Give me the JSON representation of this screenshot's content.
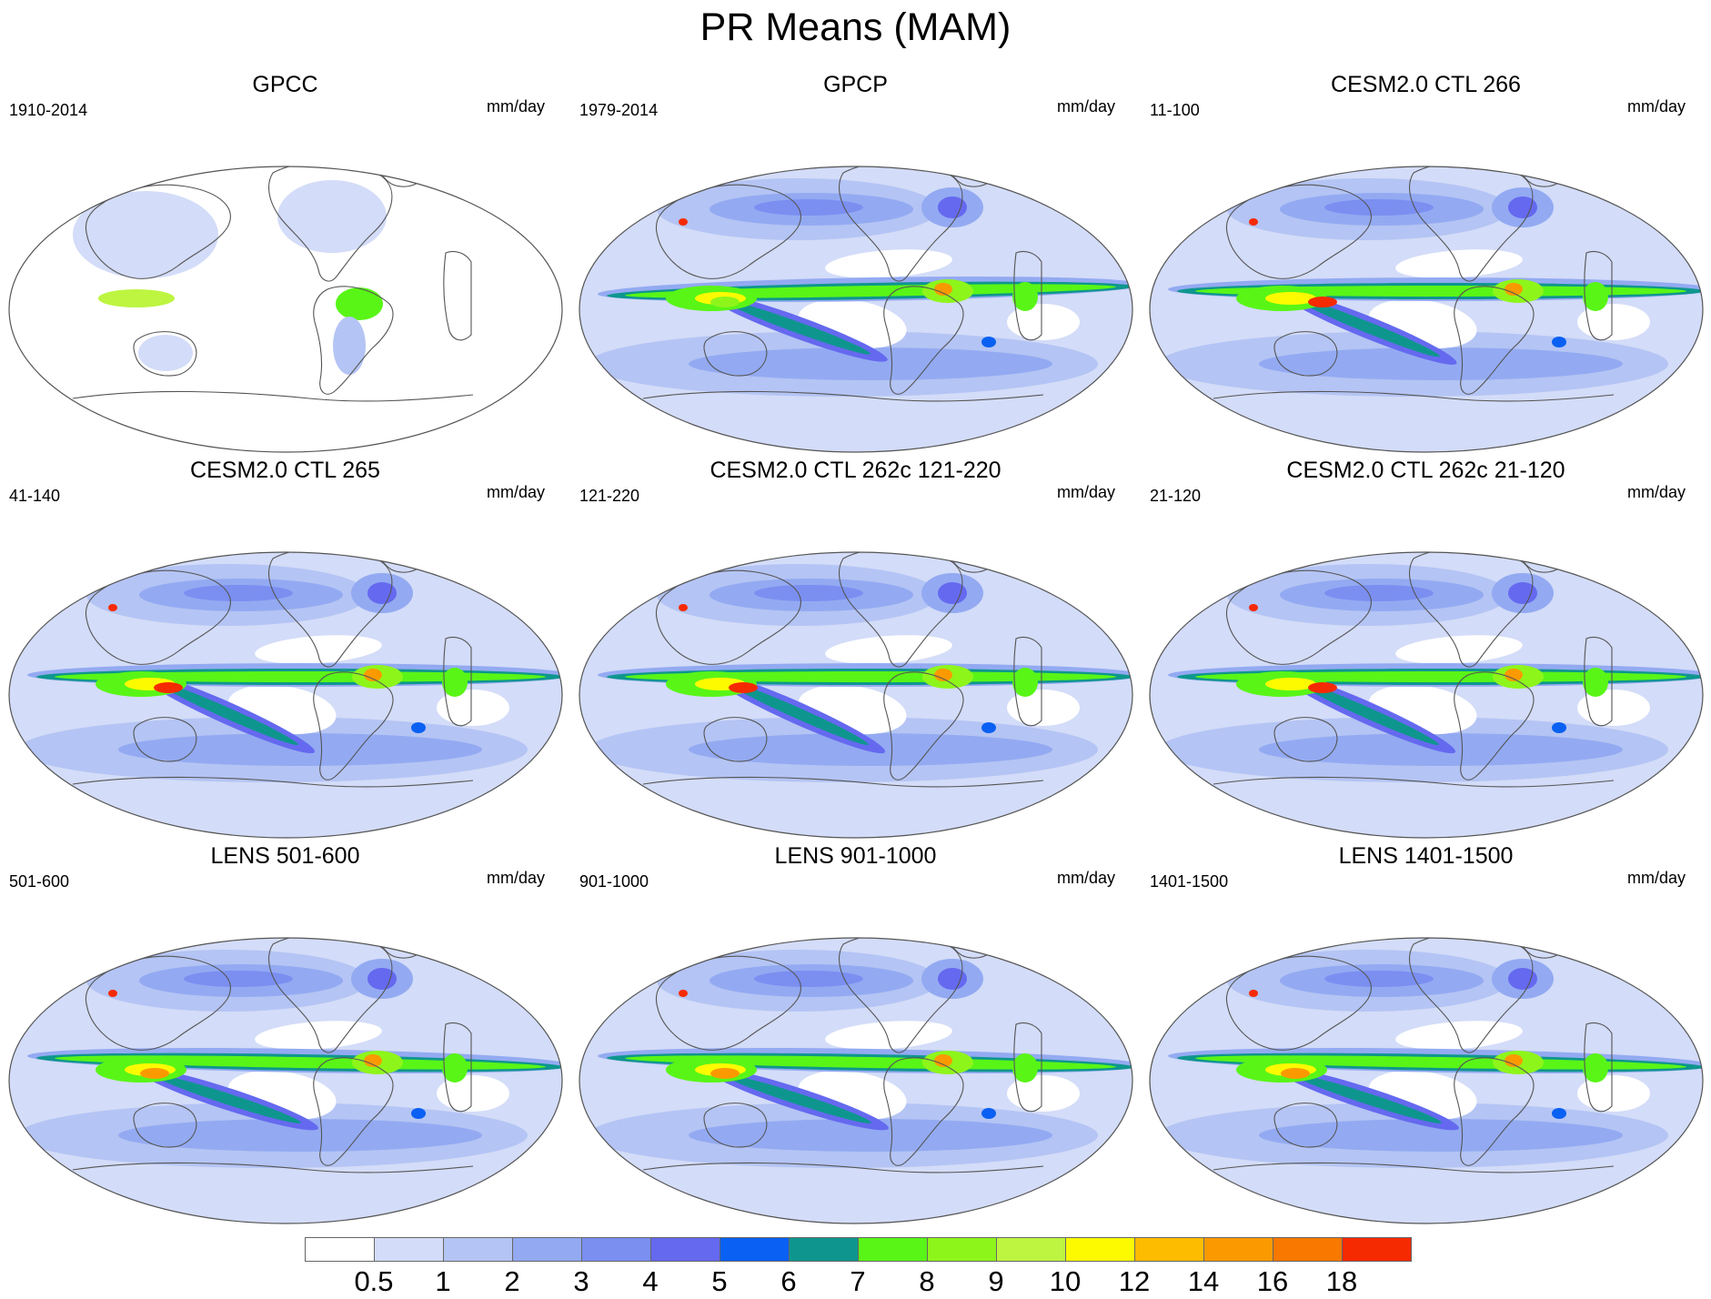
{
  "title": "PR Means (MAM)",
  "units": "mm/day",
  "projection": "Robinson, Pacific-centered",
  "panels": [
    {
      "title": "GPCC",
      "period": "1910-2014",
      "dataset": "land-only"
    },
    {
      "title": "GPCP",
      "period": "1979-2014",
      "dataset": "global"
    },
    {
      "title": "CESM2.0 CTL 266",
      "period": "11-100",
      "dataset": "global"
    },
    {
      "title": "CESM2.0 CTL 265",
      "period": "41-140",
      "dataset": "global"
    },
    {
      "title": "CESM2.0 CTL 262c 121-220",
      "period": "121-220",
      "dataset": "global"
    },
    {
      "title": "CESM2.0 CTL 262c 21-120",
      "period": "21-120",
      "dataset": "global"
    },
    {
      "title": "LENS 501-600",
      "period": "501-600",
      "dataset": "global"
    },
    {
      "title": "LENS 901-1000",
      "period": "901-1000",
      "dataset": "global"
    },
    {
      "title": "LENS 1401-1500",
      "period": "1401-1500",
      "dataset": "global"
    }
  ],
  "colorbar": {
    "labels": [
      "0.5",
      "1",
      "2",
      "3",
      "4",
      "5",
      "6",
      "7",
      "8",
      "9",
      "10",
      "12",
      "14",
      "16",
      "18"
    ],
    "colors": [
      "#ffffff",
      "#d3dcf8",
      "#b4c4f4",
      "#93aaf2",
      "#7b8ff1",
      "#6569ef",
      "#0a60f2",
      "#0e968e",
      "#59f517",
      "#8ef51b",
      "#bdf540",
      "#fdfa00",
      "#fdbc00",
      "#fb9a00",
      "#f97800",
      "#f62a00"
    ]
  }
}
